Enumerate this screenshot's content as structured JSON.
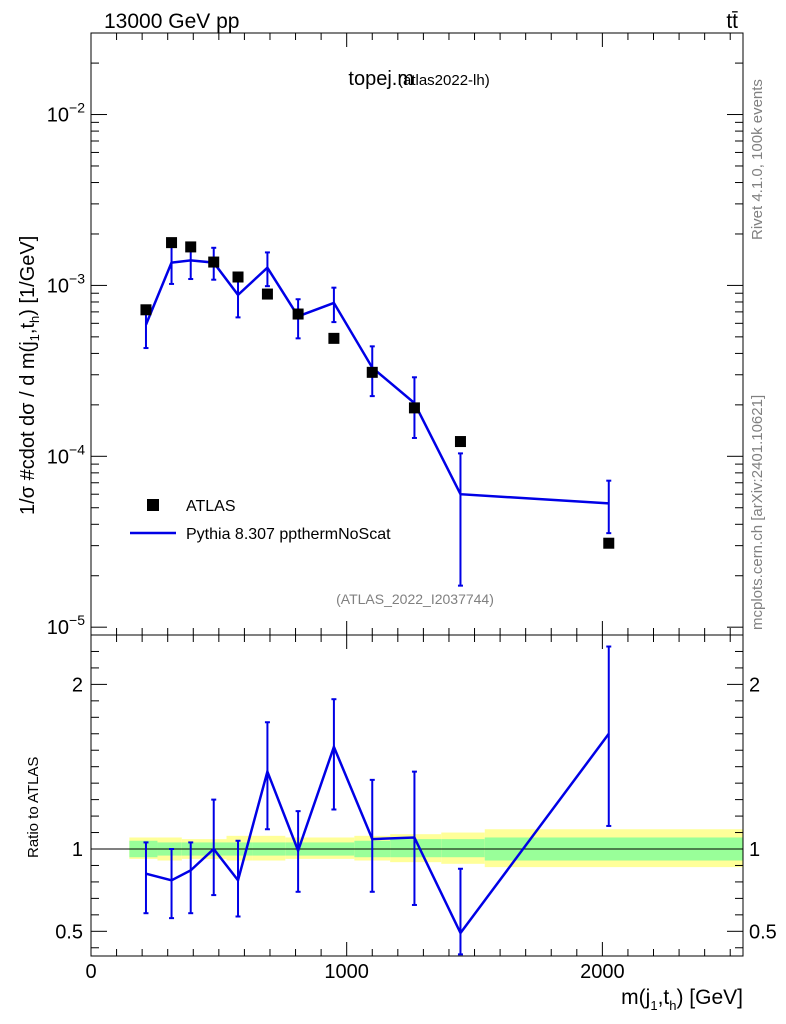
{
  "header": {
    "energy_label": "13000 GeV pp",
    "process_label": "tt̄"
  },
  "side_labels": {
    "rivet": "Rivet 4.1.0,  100k events",
    "source": "mcplots.cern.ch [arXiv:2401.10621]"
  },
  "colors": {
    "mc": "#0000e6",
    "band_inner": "#99ff99",
    "band_outer": "#ffff99",
    "data": "#000000",
    "grey_text": "#808080"
  },
  "chart_data": {
    "type": "line",
    "title": "topej.m",
    "title_sub": "(atlas2022-lh)",
    "watermark": "(ATLAS_2022_I2037744)",
    "xlabel_main": "m(j",
    "xlabel_sub1": "1",
    "xlabel_mid": ",t",
    "xlabel_sub2": "h",
    "xlabel_end": ") [GeV]",
    "ylabel": "1/σ #cdot dσ / d m(j1,th) [1/GeV]",
    "ratio_ylabel": "Ratio to ATLAS",
    "xlim": [
      0,
      2550
    ],
    "ylim": [
      9e-06,
      0.03
    ],
    "ratio_ylim": [
      0.35,
      2.3
    ],
    "x_ticks": [
      "0",
      "1000",
      "2000"
    ],
    "x_tick_values": [
      0,
      1000,
      2000
    ],
    "y_ticks": [
      {
        "base": "10",
        "exp": "−2",
        "value": 0.01
      },
      {
        "base": "10",
        "exp": "−3",
        "value": 0.001
      },
      {
        "base": "10",
        "exp": "−4",
        "value": 0.0001
      },
      {
        "base": "10",
        "exp": "−5",
        "value": 1e-05
      }
    ],
    "ratio_ticks": [
      {
        "label": "2",
        "value": 2
      },
      {
        "label": "1",
        "value": 1
      },
      {
        "label": "0.5",
        "value": 0.5
      }
    ],
    "legend": [
      {
        "label": "ATLAS",
        "kind": "marker"
      },
      {
        "label": "Pythia 8.307 ppthermNoScat",
        "kind": "line"
      }
    ],
    "data_series": {
      "name": "ATLAS",
      "x": [
        215,
        315,
        390,
        480,
        575,
        690,
        810,
        950,
        1100,
        1265,
        1445,
        2025
      ],
      "y": [
        0.00072,
        0.00178,
        0.00168,
        0.00137,
        0.00112,
        0.00089,
        0.00068,
        0.00049,
        0.00031,
        0.000192,
        0.000122,
        3.1e-05
      ]
    },
    "mc_series": {
      "name": "Pythia 8.307 ppthermNoScat",
      "x": [
        215,
        315,
        390,
        480,
        575,
        690,
        810,
        950,
        1100,
        1265,
        1445,
        2025
      ],
      "y": [
        0.00059,
        0.00136,
        0.0014,
        0.00136,
        0.00088,
        0.00127,
        0.00066,
        0.00079,
        0.00033,
        0.000205,
        6e-05,
        5.3e-05
      ],
      "err_lo": [
        0.00043,
        0.00102,
        0.00109,
        0.00108,
        0.00065,
        0.00099,
        0.00049,
        0.00061,
        0.000225,
        0.000128,
        1.75e-05,
        3.55e-05
      ],
      "err_hi": [
        0.00075,
        0.00172,
        0.00171,
        0.00166,
        0.00111,
        0.00156,
        0.00083,
        0.00097,
        0.00044,
        0.00029,
        0.000104,
        7.2e-05
      ]
    },
    "ratio_series": {
      "x": [
        215,
        315,
        390,
        480,
        575,
        690,
        810,
        950,
        1100,
        1265,
        1445,
        2025
      ],
      "y": [
        0.85,
        0.81,
        0.87,
        1.0,
        0.81,
        1.47,
        0.99,
        1.62,
        1.06,
        1.07,
        0.49,
        1.7
      ],
      "err_lo": [
        0.61,
        0.58,
        0.61,
        0.72,
        0.59,
        1.12,
        0.74,
        1.24,
        0.74,
        0.66,
        0.36,
        1.14
      ],
      "err_hi": [
        1.04,
        1.0,
        1.04,
        1.3,
        1.05,
        1.77,
        1.23,
        1.91,
        1.42,
        1.47,
        0.88,
        2.23
      ]
    },
    "ratio_bands": {
      "edges": [
        150,
        260,
        355,
        440,
        530,
        630,
        760,
        880,
        1030,
        1170,
        1370,
        1540,
        2550
      ],
      "inner": [
        [
          0.95,
          1.05
        ],
        [
          0.96,
          1.04
        ],
        [
          0.96,
          1.04
        ],
        [
          0.96,
          1.04
        ],
        [
          0.96,
          1.04
        ],
        [
          0.96,
          1.04
        ],
        [
          0.96,
          1.04
        ],
        [
          0.96,
          1.04
        ],
        [
          0.95,
          1.05
        ],
        [
          0.95,
          1.06
        ],
        [
          0.95,
          1.06
        ],
        [
          0.93,
          1.07
        ]
      ],
      "outer": [
        [
          0.94,
          1.07
        ],
        [
          0.93,
          1.07
        ],
        [
          0.94,
          1.06
        ],
        [
          0.94,
          1.06
        ],
        [
          0.93,
          1.08
        ],
        [
          0.93,
          1.08
        ],
        [
          0.94,
          1.07
        ],
        [
          0.94,
          1.07
        ],
        [
          0.93,
          1.08
        ],
        [
          0.92,
          1.09
        ],
        [
          0.91,
          1.1
        ],
        [
          0.89,
          1.12
        ]
      ]
    }
  }
}
